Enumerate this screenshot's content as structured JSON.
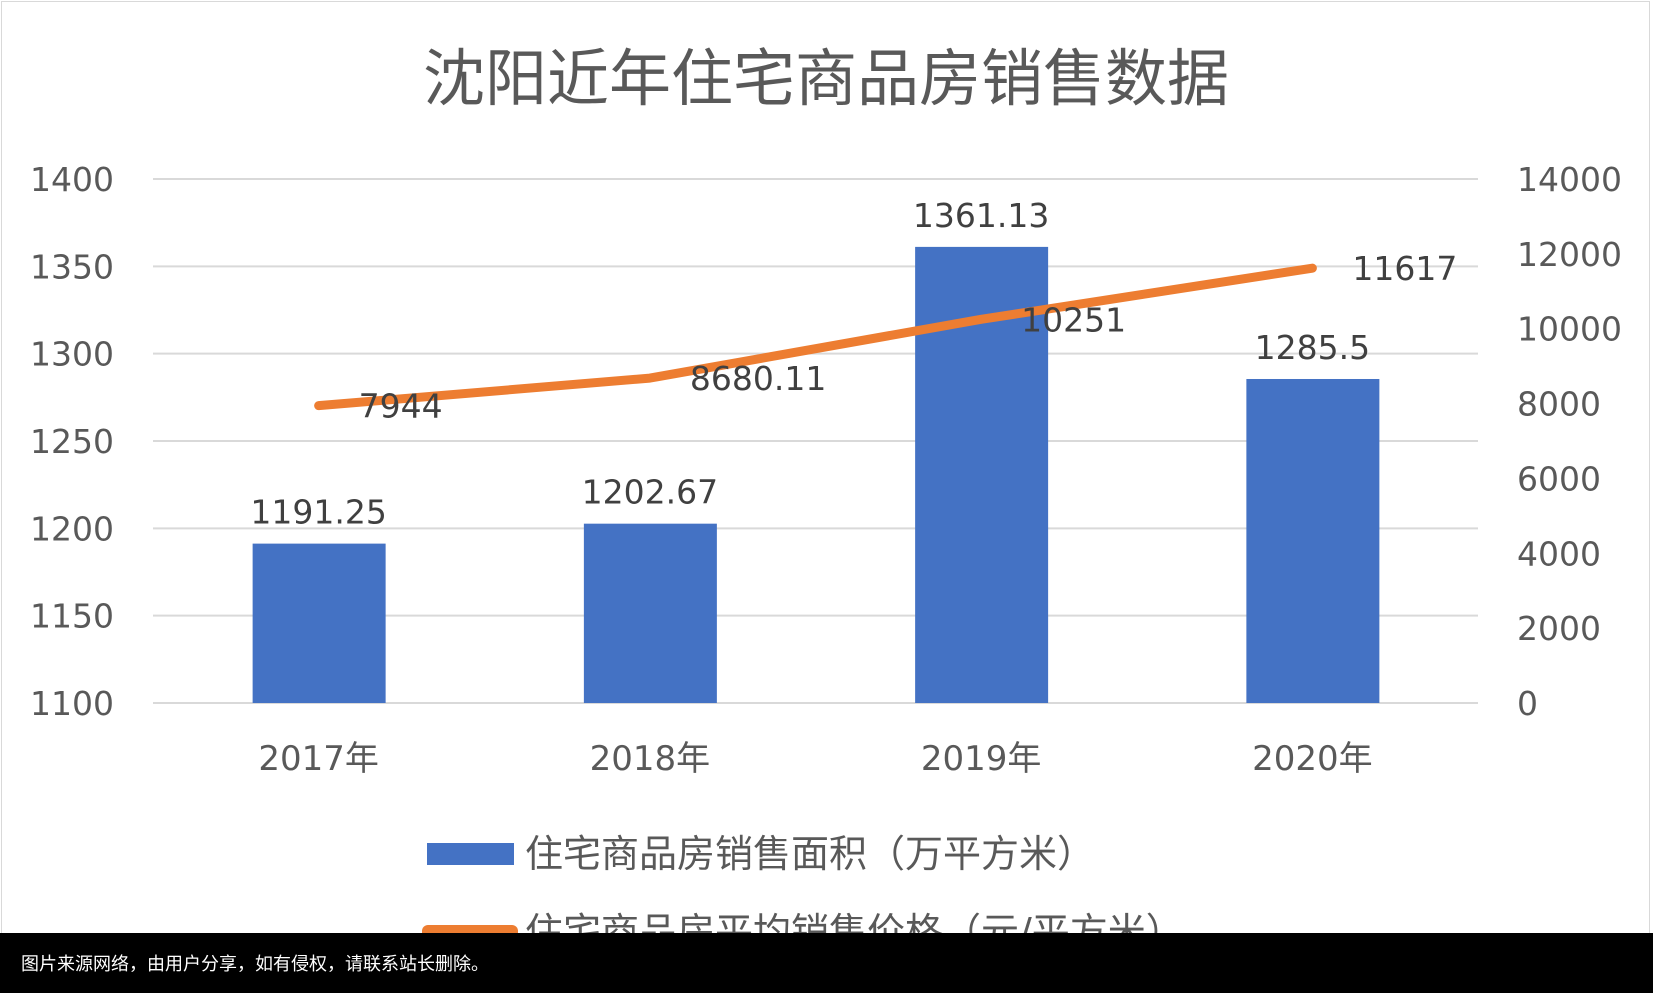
{
  "chart_data": {
    "type": "bar+line",
    "title": "沈阳近年住宅商品房销售数据",
    "categories": [
      "2017年",
      "2018年",
      "2019年",
      "2020年"
    ],
    "series": [
      {
        "name": "住宅商品房销售面积（万平方米）",
        "type": "bar",
        "axis": "left",
        "color": "#4472c4",
        "values": [
          1191.25,
          1202.67,
          1361.13,
          1285.5
        ],
        "labels": [
          "1191.25",
          "1202.67",
          "1361.13",
          "1285.5"
        ]
      },
      {
        "name": "住宅商品房平均销售价格（元/平方米）",
        "type": "line",
        "axis": "right",
        "color": "#ed7d31",
        "values": [
          7944,
          8680.11,
          10251,
          11617
        ],
        "labels": [
          "7944",
          "8680.11",
          "10251",
          "11617"
        ]
      }
    ],
    "y_left": {
      "min": 1100,
      "max": 1400,
      "ticks": [
        "1100",
        "1150",
        "1200",
        "1250",
        "1300",
        "1350",
        "1400"
      ]
    },
    "y_right": {
      "min": 0,
      "max": 14000,
      "ticks": [
        "0",
        "2000",
        "4000",
        "6000",
        "8000",
        "10000",
        "12000",
        "14000"
      ]
    },
    "grid": true,
    "legend": "bottom"
  },
  "caption": "图片来源网络，由用户分享，如有侵权，请联系站长删除。"
}
